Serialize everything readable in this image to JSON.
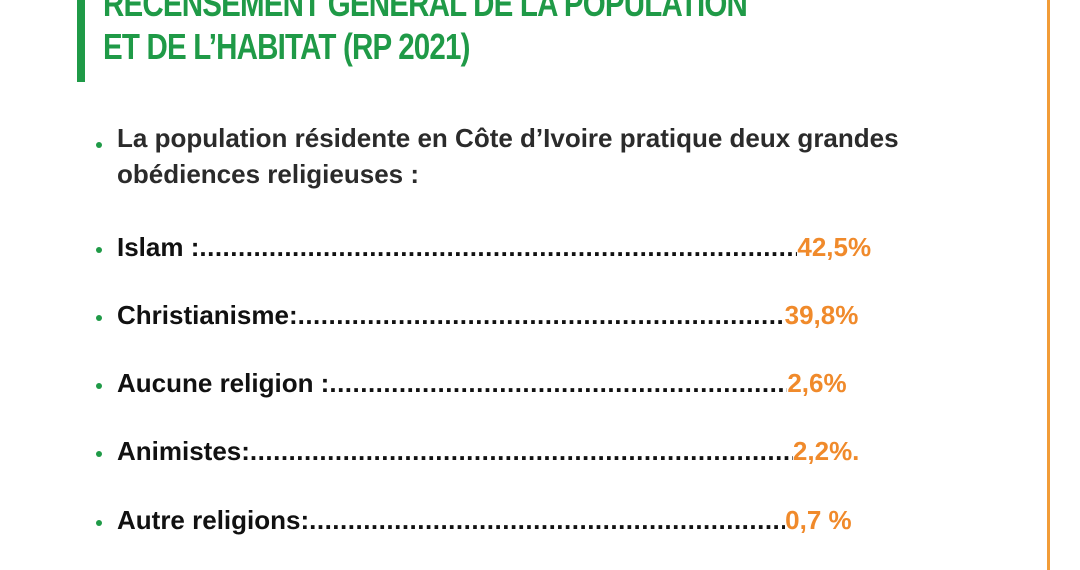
{
  "header": {
    "title_line1": "RECENSEMENT GENERAL DE LA POPULATION",
    "title_line2": "ET DE L’HABITAT (RP 2021)"
  },
  "intro": "La population résidente en Côte d’Ivoire pratique deux grandes obédiences religieuses :",
  "items": [
    {
      "label": "Islam  : ",
      "value": "42,5%"
    },
    {
      "label": "Christianisme: ",
      "value": "39,8%"
    },
    {
      "label": "Aucune religion :",
      "value": "2,6%"
    },
    {
      "label": "Animistes: ",
      "value": "2,2%."
    },
    {
      "label": "Autre religions:",
      "value": "0,7 %"
    }
  ],
  "colors": {
    "accent_green": "#1f9a47",
    "accent_orange": "#f08a2b"
  }
}
